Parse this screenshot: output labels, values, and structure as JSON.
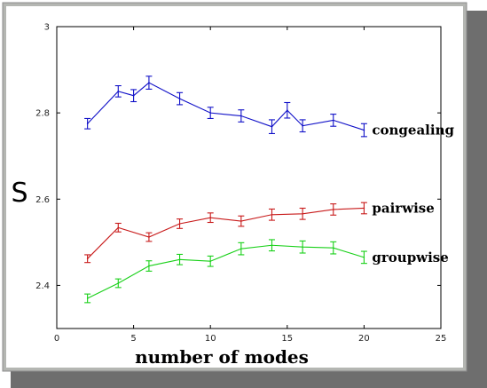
{
  "chart_data": {
    "type": "line",
    "title": "",
    "xlabel": "number of modes",
    "ylabel": "S",
    "xlim": [
      0,
      25
    ],
    "ylim": [
      2.3,
      3.0
    ],
    "xticks": [
      0,
      5,
      10,
      15,
      20,
      25
    ],
    "yticks": [
      2.4,
      2.6,
      2.8,
      3.0
    ],
    "xtick_labels": [
      "0",
      "5",
      "10",
      "15",
      "20",
      "25"
    ],
    "ytick_labels": [
      "2.4",
      "2.6",
      "2.8",
      "3"
    ],
    "grid": false,
    "error_bars": true,
    "series": [
      {
        "name": "congealing",
        "color": "#1010c8",
        "x": [
          2,
          4,
          5,
          6,
          8,
          10,
          12,
          14,
          15,
          16,
          18,
          20
        ],
        "y": [
          2.775,
          2.85,
          2.84,
          2.87,
          2.833,
          2.8,
          2.793,
          2.768,
          2.806,
          2.77,
          2.783,
          2.76
        ],
        "err": [
          0.012,
          0.013,
          0.014,
          0.015,
          0.014,
          0.013,
          0.014,
          0.016,
          0.018,
          0.014,
          0.014,
          0.015
        ]
      },
      {
        "name": "pairwise",
        "color": "#c81a1a",
        "x": [
          2,
          4,
          6,
          8,
          10,
          12,
          14,
          16,
          18,
          20
        ],
        "y": [
          2.462,
          2.534,
          2.512,
          2.543,
          2.557,
          2.549,
          2.564,
          2.566,
          2.576,
          2.579
        ],
        "err": [
          0.009,
          0.01,
          0.01,
          0.011,
          0.011,
          0.012,
          0.013,
          0.013,
          0.013,
          0.013
        ]
      },
      {
        "name": "groupwise",
        "color": "#18d018",
        "x": [
          2,
          4,
          6,
          8,
          10,
          12,
          14,
          16,
          18,
          20
        ],
        "y": [
          2.37,
          2.405,
          2.445,
          2.46,
          2.456,
          2.485,
          2.493,
          2.489,
          2.487,
          2.465
        ],
        "err": [
          0.01,
          0.01,
          0.012,
          0.012,
          0.012,
          0.014,
          0.013,
          0.014,
          0.014,
          0.014
        ]
      }
    ],
    "labels_position": "right of series end",
    "colors": {
      "frame": "#b4b6b2",
      "plot_bg": "#ffffff"
    }
  }
}
